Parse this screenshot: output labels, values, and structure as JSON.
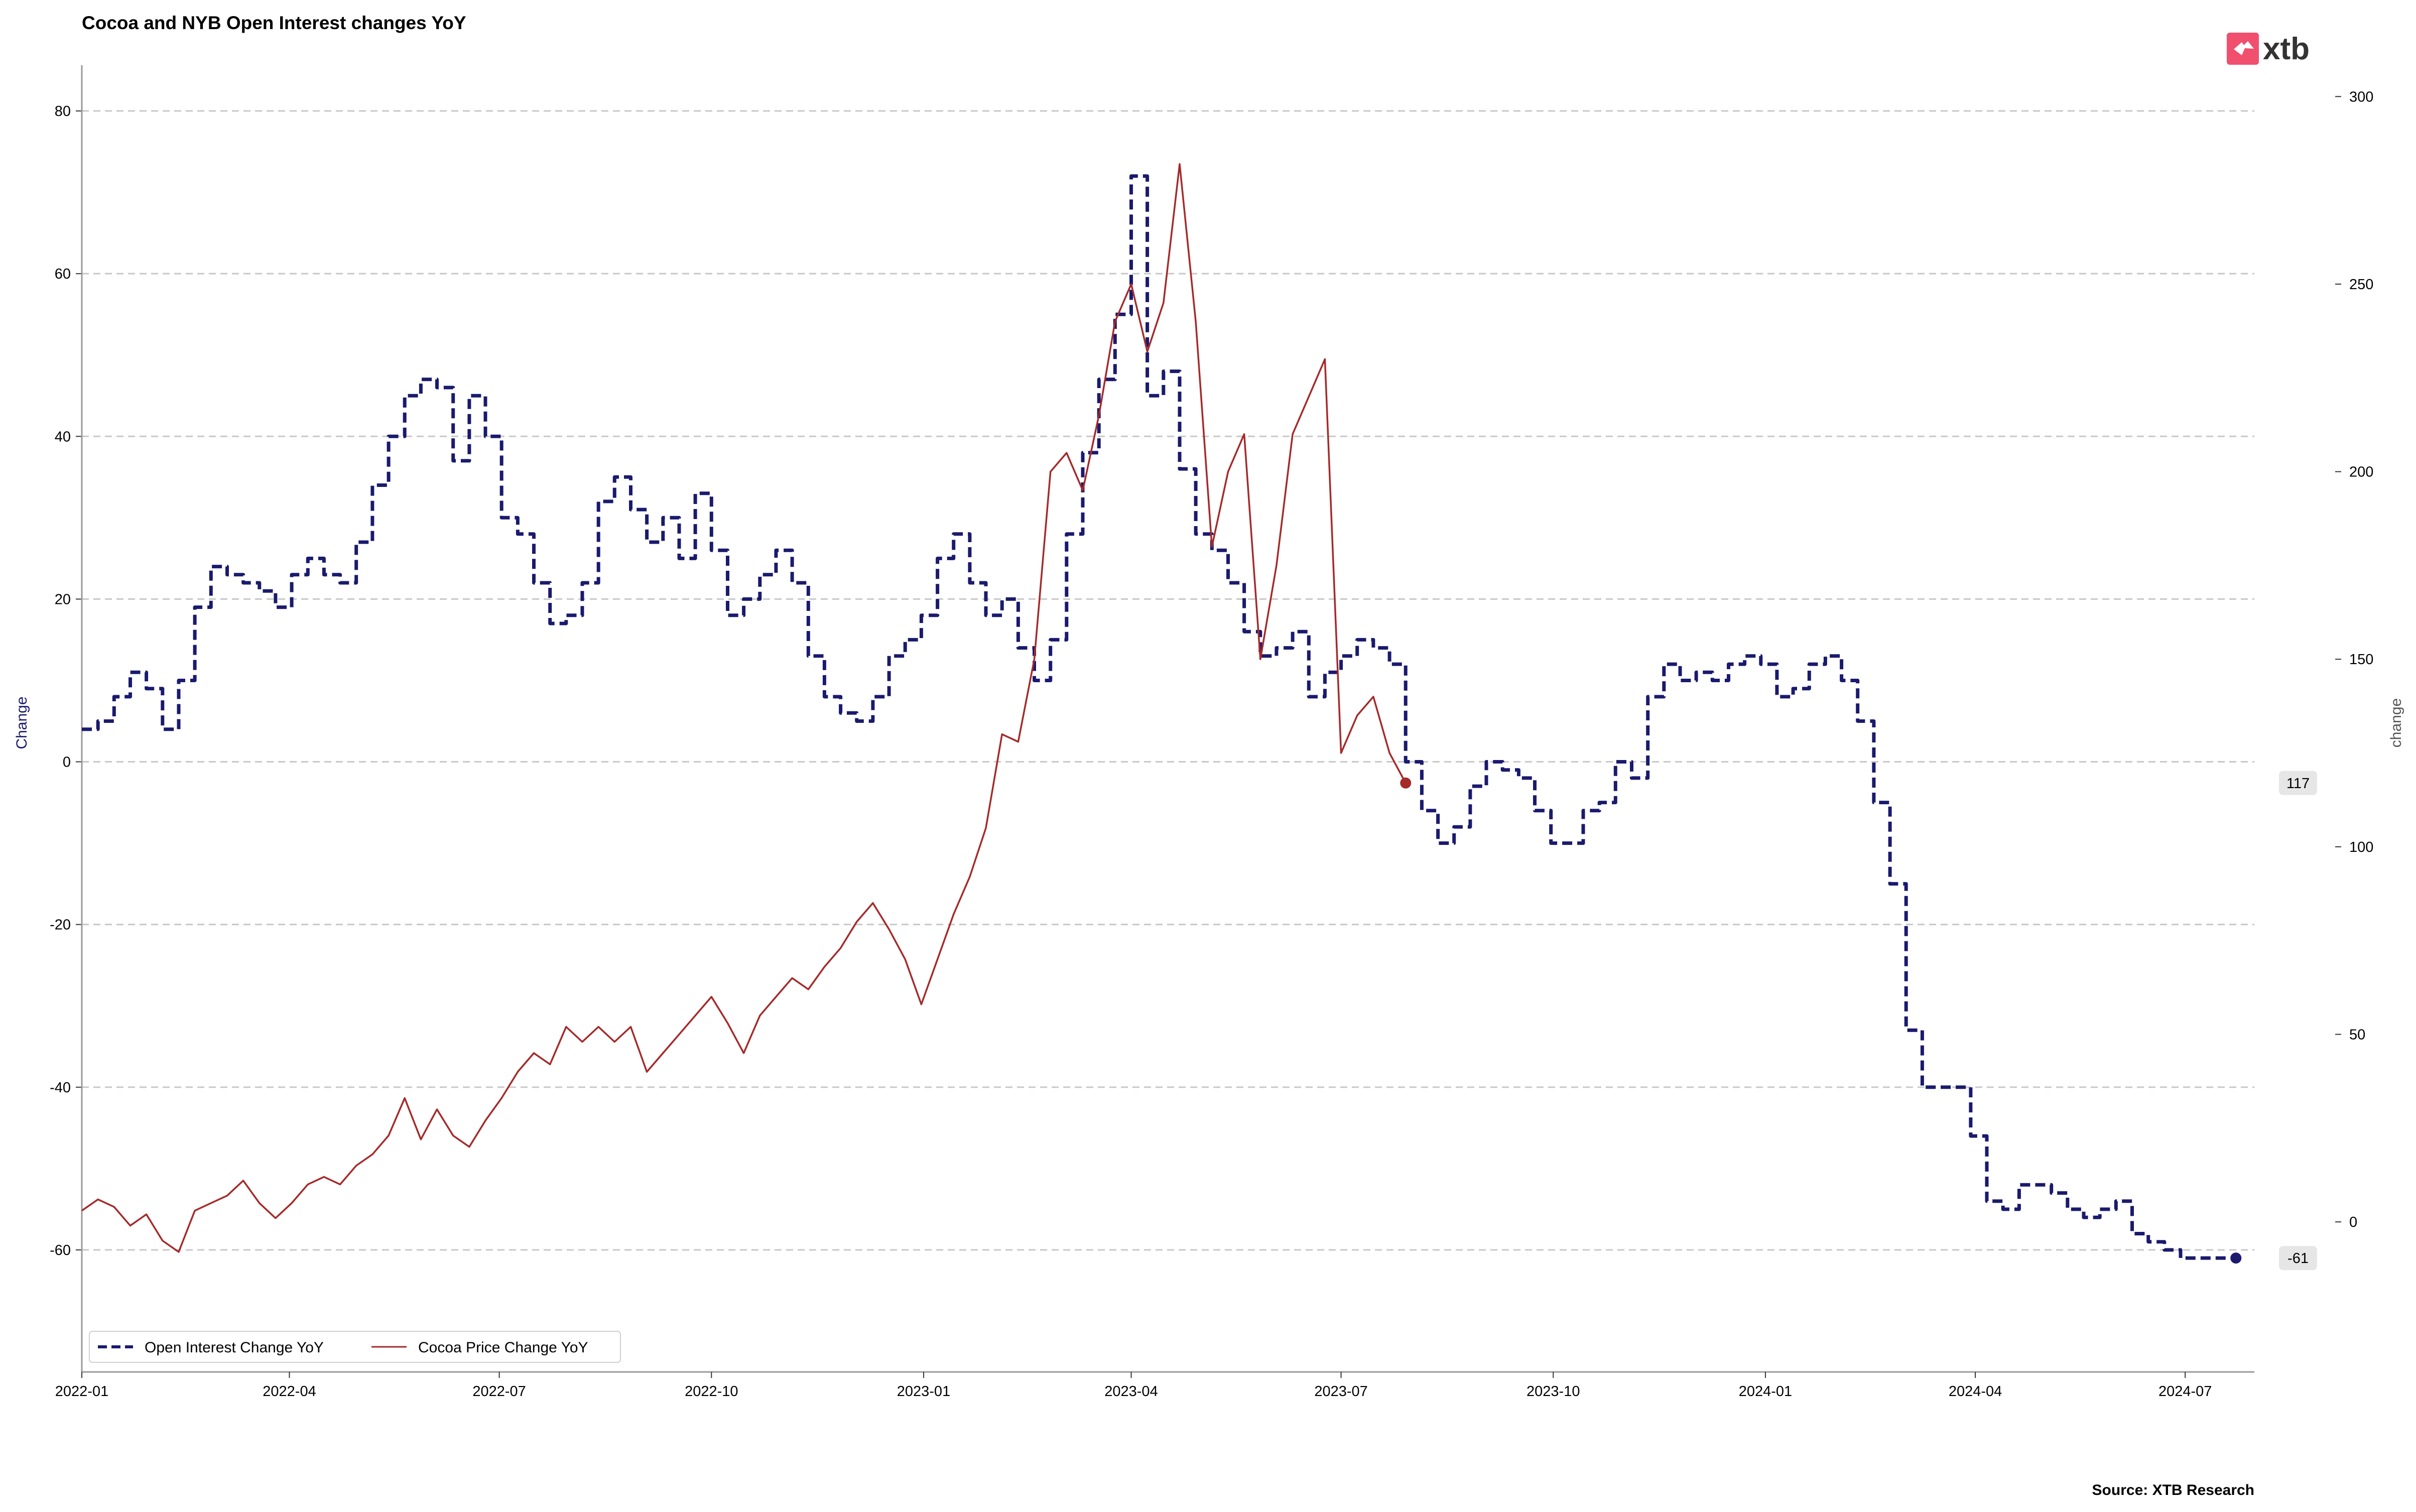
{
  "chart_data": {
    "type": "line",
    "title": "Cocoa and NYB  Open Interest changes YoY",
    "ylabel_left": "Change",
    "ylabel_right": "change",
    "x_range": [
      "2022-01-01",
      "2024-07-31"
    ],
    "ylim_left": [
      -75,
      85
    ],
    "ylim_right": [
      -40,
      307
    ],
    "x_ticks": [
      "2022-01",
      "2022-04",
      "2022-07",
      "2022-10",
      "2023-01",
      "2023-04",
      "2023-07",
      "2023-10",
      "2024-01",
      "2024-04",
      "2024-07"
    ],
    "y_ticks_left": [
      80,
      60,
      40,
      20,
      0,
      -20,
      -40,
      -60
    ],
    "y_ticks_right": [
      300,
      250,
      200,
      150,
      100,
      50,
      0
    ],
    "grid": "horizontal dashed",
    "legend_position": "lower-left",
    "series": [
      {
        "name": "Open Interest Change YoY",
        "axis": "left",
        "style": "dashed",
        "color": "#1a1a6e",
        "points": [
          [
            "2022-01-01",
            4
          ],
          [
            "2022-01-08",
            5
          ],
          [
            "2022-01-15",
            8
          ],
          [
            "2022-01-22",
            11
          ],
          [
            "2022-01-29",
            9
          ],
          [
            "2022-02-05",
            4
          ],
          [
            "2022-02-12",
            10
          ],
          [
            "2022-02-19",
            19
          ],
          [
            "2022-02-26",
            24
          ],
          [
            "2022-03-05",
            23
          ],
          [
            "2022-03-12",
            22
          ],
          [
            "2022-03-19",
            21
          ],
          [
            "2022-03-26",
            19
          ],
          [
            "2022-04-02",
            23
          ],
          [
            "2022-04-09",
            25
          ],
          [
            "2022-04-16",
            23
          ],
          [
            "2022-04-23",
            22
          ],
          [
            "2022-04-30",
            27
          ],
          [
            "2022-05-07",
            34
          ],
          [
            "2022-05-14",
            40
          ],
          [
            "2022-05-21",
            45
          ],
          [
            "2022-05-28",
            47
          ],
          [
            "2022-06-04",
            46
          ],
          [
            "2022-06-11",
            37
          ],
          [
            "2022-06-18",
            45
          ],
          [
            "2022-06-25",
            40
          ],
          [
            "2022-07-02",
            30
          ],
          [
            "2022-07-09",
            28
          ],
          [
            "2022-07-16",
            22
          ],
          [
            "2022-07-23",
            17
          ],
          [
            "2022-07-30",
            18
          ],
          [
            "2022-08-06",
            22
          ],
          [
            "2022-08-13",
            32
          ],
          [
            "2022-08-20",
            35
          ],
          [
            "2022-08-27",
            31
          ],
          [
            "2022-09-03",
            27
          ],
          [
            "2022-09-10",
            30
          ],
          [
            "2022-09-17",
            25
          ],
          [
            "2022-09-24",
            33
          ],
          [
            "2022-10-01",
            26
          ],
          [
            "2022-10-08",
            18
          ],
          [
            "2022-10-15",
            20
          ],
          [
            "2022-10-22",
            23
          ],
          [
            "2022-10-29",
            26
          ],
          [
            "2022-11-05",
            22
          ],
          [
            "2022-11-12",
            13
          ],
          [
            "2022-11-19",
            8
          ],
          [
            "2022-11-26",
            6
          ],
          [
            "2022-12-03",
            5
          ],
          [
            "2022-12-10",
            8
          ],
          [
            "2022-12-17",
            13
          ],
          [
            "2022-12-24",
            15
          ],
          [
            "2022-12-31",
            18
          ],
          [
            "2023-01-07",
            25
          ],
          [
            "2023-01-14",
            28
          ],
          [
            "2023-01-21",
            22
          ],
          [
            "2023-01-28",
            18
          ],
          [
            "2023-02-04",
            20
          ],
          [
            "2023-02-11",
            14
          ],
          [
            "2023-02-18",
            10
          ],
          [
            "2023-02-25",
            15
          ],
          [
            "2023-03-04",
            28
          ],
          [
            "2023-03-11",
            38
          ],
          [
            "2023-03-18",
            47
          ],
          [
            "2023-03-25",
            55
          ],
          [
            "2023-04-01",
            72
          ],
          [
            "2023-04-08",
            45
          ],
          [
            "2023-04-15",
            48
          ],
          [
            "2023-04-22",
            36
          ],
          [
            "2023-04-29",
            28
          ],
          [
            "2023-05-06",
            26
          ],
          [
            "2023-05-13",
            22
          ],
          [
            "2023-05-20",
            16
          ],
          [
            "2023-05-27",
            13
          ],
          [
            "2023-06-03",
            14
          ],
          [
            "2023-06-10",
            16
          ],
          [
            "2023-06-17",
            8
          ],
          [
            "2023-06-24",
            11
          ],
          [
            "2023-07-01",
            13
          ],
          [
            "2023-07-08",
            15
          ],
          [
            "2023-07-15",
            14
          ],
          [
            "2023-07-22",
            12
          ],
          [
            "2023-07-29",
            0
          ],
          [
            "2023-08-05",
            -6
          ],
          [
            "2023-08-12",
            -10
          ],
          [
            "2023-08-19",
            -8
          ],
          [
            "2023-08-26",
            -3
          ],
          [
            "2023-09-02",
            0
          ],
          [
            "2023-09-09",
            -1
          ],
          [
            "2023-09-16",
            -2
          ],
          [
            "2023-09-23",
            -6
          ],
          [
            "2023-09-30",
            -10
          ],
          [
            "2023-10-07",
            -10
          ],
          [
            "2023-10-14",
            -6
          ],
          [
            "2023-10-21",
            -5
          ],
          [
            "2023-10-28",
            0
          ],
          [
            "2023-11-04",
            -2
          ],
          [
            "2023-11-11",
            8
          ],
          [
            "2023-11-18",
            12
          ],
          [
            "2023-11-25",
            10
          ],
          [
            "2023-12-02",
            11
          ],
          [
            "2023-12-09",
            10
          ],
          [
            "2023-12-16",
            12
          ],
          [
            "2023-12-23",
            13
          ],
          [
            "2023-12-30",
            12
          ],
          [
            "2024-01-06",
            8
          ],
          [
            "2024-01-13",
            9
          ],
          [
            "2024-01-20",
            12
          ],
          [
            "2024-01-27",
            13
          ],
          [
            "2024-02-03",
            10
          ],
          [
            "2024-02-10",
            5
          ],
          [
            "2024-02-17",
            -5
          ],
          [
            "2024-02-24",
            -15
          ],
          [
            "2024-03-02",
            -33
          ],
          [
            "2024-03-09",
            -40
          ],
          [
            "2024-03-16",
            -40
          ],
          [
            "2024-03-23",
            -40
          ],
          [
            "2024-03-30",
            -46
          ],
          [
            "2024-04-06",
            -54
          ],
          [
            "2024-04-13",
            -55
          ],
          [
            "2024-04-20",
            -52
          ],
          [
            "2024-04-27",
            -52
          ],
          [
            "2024-05-04",
            -53
          ],
          [
            "2024-05-11",
            -55
          ],
          [
            "2024-05-18",
            -56
          ],
          [
            "2024-05-25",
            -55
          ],
          [
            "2024-06-01",
            -54
          ],
          [
            "2024-06-08",
            -58
          ],
          [
            "2024-06-15",
            -59
          ],
          [
            "2024-06-22",
            -60
          ],
          [
            "2024-06-29",
            -61
          ],
          [
            "2024-07-06",
            -61
          ],
          [
            "2024-07-13",
            -61
          ],
          [
            "2024-07-23",
            -61
          ]
        ]
      },
      {
        "name": "Cocoa Price Change YoY",
        "axis": "right",
        "style": "solid",
        "color": "#a52a2a",
        "points": [
          [
            "2022-01-01",
            3
          ],
          [
            "2022-01-08",
            6
          ],
          [
            "2022-01-15",
            4
          ],
          [
            "2022-01-22",
            -1
          ],
          [
            "2022-01-29",
            2
          ],
          [
            "2022-02-05",
            -5
          ],
          [
            "2022-02-12",
            -8
          ],
          [
            "2022-02-19",
            3
          ],
          [
            "2022-02-26",
            5
          ],
          [
            "2022-03-05",
            7
          ],
          [
            "2022-03-12",
            11
          ],
          [
            "2022-03-19",
            5
          ],
          [
            "2022-03-26",
            1
          ],
          [
            "2022-04-02",
            5
          ],
          [
            "2022-04-09",
            10
          ],
          [
            "2022-04-16",
            12
          ],
          [
            "2022-04-23",
            10
          ],
          [
            "2022-04-30",
            15
          ],
          [
            "2022-05-07",
            18
          ],
          [
            "2022-05-14",
            23
          ],
          [
            "2022-05-21",
            33
          ],
          [
            "2022-05-28",
            22
          ],
          [
            "2022-06-04",
            30
          ],
          [
            "2022-06-11",
            23
          ],
          [
            "2022-06-18",
            20
          ],
          [
            "2022-06-25",
            27
          ],
          [
            "2022-07-02",
            33
          ],
          [
            "2022-07-09",
            40
          ],
          [
            "2022-07-16",
            45
          ],
          [
            "2022-07-23",
            42
          ],
          [
            "2022-07-30",
            52
          ],
          [
            "2022-08-06",
            48
          ],
          [
            "2022-08-13",
            52
          ],
          [
            "2022-08-20",
            48
          ],
          [
            "2022-08-27",
            52
          ],
          [
            "2022-09-03",
            40
          ],
          [
            "2022-09-10",
            45
          ],
          [
            "2022-09-17",
            50
          ],
          [
            "2022-09-24",
            55
          ],
          [
            "2022-10-01",
            60
          ],
          [
            "2022-10-08",
            53
          ],
          [
            "2022-10-15",
            45
          ],
          [
            "2022-10-22",
            55
          ],
          [
            "2022-10-29",
            60
          ],
          [
            "2022-11-05",
            65
          ],
          [
            "2022-11-12",
            62
          ],
          [
            "2022-11-19",
            68
          ],
          [
            "2022-11-26",
            73
          ],
          [
            "2022-12-03",
            80
          ],
          [
            "2022-12-10",
            85
          ],
          [
            "2022-12-17",
            78
          ],
          [
            "2022-12-24",
            70
          ],
          [
            "2022-12-31",
            58
          ],
          [
            "2023-01-07",
            70
          ],
          [
            "2023-01-14",
            82
          ],
          [
            "2023-01-21",
            92
          ],
          [
            "2023-01-28",
            105
          ],
          [
            "2023-02-04",
            130
          ],
          [
            "2023-02-11",
            128
          ],
          [
            "2023-02-18",
            150
          ],
          [
            "2023-02-25",
            200
          ],
          [
            "2023-03-04",
            205
          ],
          [
            "2023-03-11",
            195
          ],
          [
            "2023-03-18",
            215
          ],
          [
            "2023-03-25",
            240
          ],
          [
            "2023-04-01",
            250
          ],
          [
            "2023-04-08",
            232
          ],
          [
            "2023-04-15",
            245
          ],
          [
            "2023-04-22",
            282
          ],
          [
            "2023-04-29",
            240
          ],
          [
            "2023-05-06",
            180
          ],
          [
            "2023-05-13",
            200
          ],
          [
            "2023-05-20",
            210
          ],
          [
            "2023-05-27",
            150
          ],
          [
            "2023-06-03",
            175
          ],
          [
            "2023-06-10",
            210
          ],
          [
            "2023-06-17",
            220
          ],
          [
            "2023-06-24",
            230
          ],
          [
            "2023-07-01",
            125
          ],
          [
            "2023-07-08",
            135
          ],
          [
            "2023-07-15",
            140
          ],
          [
            "2023-07-22",
            125
          ],
          [
            "2023-07-29",
            117
          ]
        ]
      }
    ],
    "end_labels": [
      {
        "series": "Open Interest Change YoY",
        "value": -61,
        "text": "-61"
      },
      {
        "series": "Cocoa Price Change YoY",
        "value": 117,
        "text": "117"
      }
    ]
  },
  "colors": {
    "open_interest": "#1a1a6e",
    "cocoa": "#a52a2a",
    "grid": "#c8c8c8",
    "logo": "#f0506e"
  },
  "legend": {
    "items": [
      "Open Interest Change YoY",
      "Cocoa Price Change YoY"
    ]
  },
  "logo": {
    "text": "xtb",
    "icon": "xtb-logo-icon"
  },
  "source": "Source: XTB Research"
}
